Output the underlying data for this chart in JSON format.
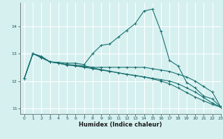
{
  "xlabel": "Humidex (Indice chaleur)",
  "bg_color": "#d6f0f0",
  "grid_color": "#ffffff",
  "line_color": "#1a7070",
  "xlim": [
    -0.5,
    23
  ],
  "ylim": [
    10.8,
    14.85
  ],
  "yticks": [
    11,
    12,
    13,
    14
  ],
  "xticks": [
    0,
    1,
    2,
    3,
    4,
    5,
    6,
    7,
    8,
    9,
    10,
    11,
    12,
    13,
    14,
    15,
    16,
    17,
    18,
    19,
    20,
    21,
    22,
    23
  ],
  "series": [
    {
      "x": [
        0,
        1,
        2,
        3,
        4,
        5,
        6,
        7,
        8,
        9,
        10,
        11,
        12,
        13,
        14,
        15,
        16,
        17,
        18,
        19,
        20,
        21,
        22,
        23
      ],
      "y": [
        12.1,
        13.0,
        12.9,
        12.7,
        12.68,
        12.65,
        12.65,
        12.6,
        13.0,
        13.3,
        13.35,
        13.6,
        13.85,
        14.1,
        14.55,
        14.62,
        13.8,
        12.75,
        12.55,
        11.95,
        11.75,
        11.45,
        11.35,
        11.05
      ]
    },
    {
      "x": [
        0,
        1,
        2,
        3,
        4,
        5,
        6,
        7,
        8,
        9,
        10,
        11,
        12,
        13,
        14,
        15,
        16,
        17,
        18,
        19,
        20,
        21,
        22,
        23
      ],
      "y": [
        12.1,
        13.0,
        12.88,
        12.7,
        12.65,
        12.6,
        12.58,
        12.55,
        12.5,
        12.5,
        12.5,
        12.5,
        12.5,
        12.5,
        12.5,
        12.45,
        12.4,
        12.35,
        12.25,
        12.15,
        12.0,
        11.8,
        11.6,
        11.05
      ]
    },
    {
      "x": [
        0,
        1,
        2,
        3,
        4,
        5,
        6,
        7,
        8,
        9,
        10,
        11,
        12,
        13,
        14,
        15,
        16,
        17,
        18,
        19,
        20,
        21,
        22,
        23
      ],
      "y": [
        12.1,
        13.0,
        12.85,
        12.7,
        12.65,
        12.6,
        12.55,
        12.5,
        12.45,
        12.4,
        12.35,
        12.3,
        12.25,
        12.2,
        12.15,
        12.1,
        12.05,
        12.0,
        11.9,
        11.75,
        11.6,
        11.4,
        11.2,
        11.05
      ]
    },
    {
      "x": [
        0,
        1,
        2,
        3,
        4,
        5,
        6,
        7,
        8,
        9,
        10,
        11,
        12,
        13,
        14,
        15,
        16,
        17,
        18,
        19,
        20,
        21,
        22,
        23
      ],
      "y": [
        12.1,
        13.0,
        12.85,
        12.7,
        12.65,
        12.58,
        12.56,
        12.52,
        12.48,
        12.42,
        12.36,
        12.3,
        12.24,
        12.2,
        12.15,
        12.08,
        12.0,
        11.9,
        11.75,
        11.58,
        11.42,
        11.28,
        11.15,
        11.05
      ]
    }
  ]
}
